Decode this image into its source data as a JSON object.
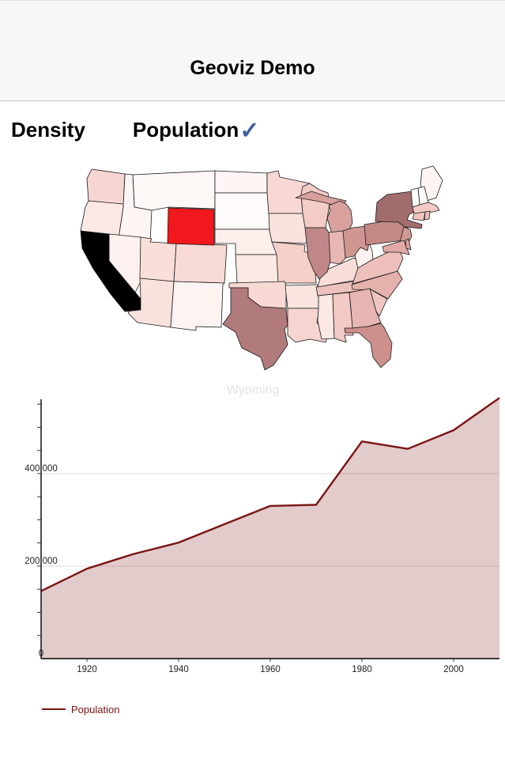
{
  "header": {
    "title": "Geoviz Demo"
  },
  "tabs": [
    {
      "label": "Density",
      "selected": false
    },
    {
      "label": "Population",
      "selected": true
    }
  ],
  "checkmark_glyph": "✓",
  "colors": {
    "check": "#3b5f9b",
    "selected_state": "#f0181c",
    "highlight_state": "#000000",
    "line": "#7a1414",
    "area_fill": "rgba(122,20,20,0.22)",
    "grid": "#dddddd",
    "axis": "#000000",
    "tick_text": "#222222",
    "chart_title_color": "#e3e3e7",
    "legend_text": "#7a1414",
    "map_stroke": "#1a1a1a"
  },
  "map": {
    "description": "us-states-choropleth",
    "selected_state": "Wyoming",
    "states": [
      {
        "id": "MT",
        "name": "Montana",
        "color": "#fdf7f6"
      },
      {
        "id": "ND",
        "name": "North Dakota",
        "color": "#fdf6f5"
      },
      {
        "id": "SD",
        "name": "South Dakota",
        "color": "#fefaf9"
      },
      {
        "id": "NE",
        "name": "Nebraska",
        "color": "#fcefec"
      },
      {
        "id": "KS",
        "name": "Kansas",
        "color": "#fae8e4"
      },
      {
        "id": "MN",
        "name": "Minnesota",
        "color": "#f7d8d4"
      },
      {
        "id": "IA",
        "name": "Iowa",
        "color": "#f9e1dd"
      },
      {
        "id": "MO",
        "name": "Missouri",
        "color": "#f5cfc9"
      },
      {
        "id": "WI",
        "name": "Wisconsin",
        "color": "#f4ccc6"
      },
      {
        "id": "ID",
        "name": "Idaho",
        "color": "#fdf5f3"
      },
      {
        "id": "WA",
        "name": "Washington",
        "color": "#f6d6d2"
      },
      {
        "id": "OR",
        "name": "Oregon",
        "color": "#fbe8e4"
      },
      {
        "id": "NV",
        "name": "Nevada",
        "color": "#fdf2f0"
      },
      {
        "id": "UT",
        "name": "Utah",
        "color": "#f9ded9"
      },
      {
        "id": "CO",
        "name": "Colorado",
        "color": "#f8dad5"
      },
      {
        "id": "AZ",
        "name": "Arizona",
        "color": "#f9e1dd"
      },
      {
        "id": "NM",
        "name": "New Mexico",
        "color": "#fdf3f1"
      },
      {
        "id": "OK",
        "name": "Oklahoma",
        "color": "#f7d8d4"
      },
      {
        "id": "AR",
        "name": "Arkansas",
        "color": "#fae4e0"
      },
      {
        "id": "LA",
        "name": "Louisiana",
        "color": "#f6d4cf"
      },
      {
        "id": "MS",
        "name": "Mississippi",
        "color": "#fbe9e6"
      },
      {
        "id": "AL",
        "name": "Alabama",
        "color": "#f2c9c5"
      },
      {
        "id": "TN",
        "name": "Tennessee",
        "color": "#ecc2be"
      },
      {
        "id": "KY",
        "name": "Kentucky",
        "color": "#f9ddd8"
      },
      {
        "id": "WV",
        "name": "West Virginia",
        "color": "#fdf2f0"
      },
      {
        "id": "VA",
        "name": "Virginia",
        "color": "#eec0bb"
      },
      {
        "id": "NC",
        "name": "North Carolina",
        "color": "#e5b1ad"
      },
      {
        "id": "SC",
        "name": "South Carolina",
        "color": "#f0c5c1"
      },
      {
        "id": "GA",
        "name": "Georgia",
        "color": "#e7b5b2"
      },
      {
        "id": "FL",
        "name": "Florida",
        "color": "#cd908c"
      },
      {
        "id": "MI",
        "name": "Michigan",
        "color": "#d8a19d"
      },
      {
        "id": "IL",
        "name": "Illinois",
        "color": "#bf8787"
      },
      {
        "id": "IN",
        "name": "Indiana",
        "color": "#e8b7b3"
      },
      {
        "id": "OH",
        "name": "Ohio",
        "color": "#cf9692"
      },
      {
        "id": "PA",
        "name": "Pennsylvania",
        "color": "#c28a86"
      },
      {
        "id": "NY",
        "name": "New York",
        "color": "#a06c6c"
      },
      {
        "id": "NJ",
        "name": "New Jersey",
        "color": "#d09995"
      },
      {
        "id": "MD",
        "name": "Maryland",
        "color": "#e0a9a5"
      },
      {
        "id": "DE",
        "name": "Delaware",
        "color": "#d9a19d"
      },
      {
        "id": "ME",
        "name": "Maine",
        "color": "#fdf4f3"
      },
      {
        "id": "NH",
        "name": "New Hampshire",
        "color": "#fefbfb"
      },
      {
        "id": "VT",
        "name": "Vermont",
        "color": "#fefbfb"
      },
      {
        "id": "MA",
        "name": "Massachusetts",
        "color": "#f3cac5"
      },
      {
        "id": "CT",
        "name": "Connecticut",
        "color": "#f1c6c1"
      },
      {
        "id": "RI",
        "name": "Rhode Island",
        "color": "#eebfba"
      },
      {
        "id": "TX",
        "name": "Texas",
        "color": "#b17b7b"
      },
      {
        "id": "WY",
        "name": "Wyoming",
        "color": "#f0181c"
      },
      {
        "id": "CA",
        "name": "California",
        "color": "#000000"
      }
    ]
  },
  "chart_data": {
    "type": "area",
    "title": "Wyoming",
    "series": [
      {
        "name": "Population",
        "x": [
          1910,
          1920,
          1930,
          1940,
          1950,
          1960,
          1970,
          1980,
          1990,
          2000,
          2010
        ],
        "values": [
          145965,
          194402,
          225565,
          250742,
          290529,
          330066,
          332416,
          469557,
          453588,
          493782,
          563626
        ]
      }
    ],
    "xlim": [
      1910,
      2010
    ],
    "ylim": [
      0,
      568000
    ],
    "x_ticks": [
      1920,
      1940,
      1960,
      1980,
      2000
    ],
    "y_ticks": [
      0,
      200000,
      400000
    ],
    "y_tick_labels": [
      "0",
      "200,000",
      "400,000"
    ],
    "minor_y_tick_step": 50000,
    "grid": "horizontal",
    "legend_position": "bottom-left"
  },
  "legend": {
    "label": "Population"
  }
}
